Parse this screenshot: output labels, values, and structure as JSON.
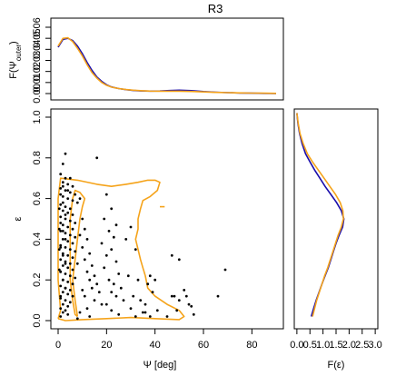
{
  "chart_data": [
    {
      "panel": "top",
      "type": "line",
      "title": "R3",
      "ylabel": "F(Ψ_outer)",
      "ylim": [
        0,
        0.06
      ],
      "yticks": [
        "0.00",
        "0.01",
        "0.02",
        "0.03",
        "0.04",
        "0.05",
        "0.06"
      ],
      "xlim": [
        -3,
        93
      ],
      "series": [
        {
          "color": "#1a0dab",
          "x": [
            0,
            2,
            4,
            6,
            8,
            10,
            12,
            14,
            16,
            18,
            20,
            22,
            25,
            28,
            31,
            34,
            38,
            42,
            46,
            50,
            55,
            60,
            65,
            70,
            75,
            80,
            85,
            90
          ],
          "y": [
            0.042,
            0.049,
            0.05,
            0.048,
            0.043,
            0.036,
            0.028,
            0.021,
            0.015,
            0.011,
            0.008,
            0.006,
            0.0045,
            0.0035,
            0.0028,
            0.0024,
            0.0022,
            0.0023,
            0.0027,
            0.003,
            0.0026,
            0.0018,
            0.0012,
            0.0008,
            0.0005,
            0.0003,
            0.0002,
            0.0001
          ]
        },
        {
          "color": "#f5a31a",
          "x": [
            0,
            2,
            4,
            6,
            8,
            10,
            12,
            14,
            16,
            18,
            20,
            22,
            25,
            28,
            31,
            34,
            38,
            42,
            46,
            50,
            55,
            60,
            65,
            70,
            75,
            80,
            85,
            90
          ],
          "y": [
            0.043,
            0.05,
            0.0505,
            0.047,
            0.041,
            0.034,
            0.026,
            0.019,
            0.014,
            0.01,
            0.0075,
            0.0058,
            0.0045,
            0.0036,
            0.003,
            0.0026,
            0.0022,
            0.0021,
            0.0021,
            0.0021,
            0.0019,
            0.0015,
            0.0011,
            0.0008,
            0.0006,
            0.0004,
            0.0003,
            0.0002
          ]
        }
      ]
    },
    {
      "panel": "main",
      "type": "scatter",
      "xlabel": "Ψ [deg]",
      "ylabel": "ε",
      "xlim": [
        -3,
        93
      ],
      "ylim": [
        -0.03,
        1.03
      ],
      "xticks": [
        "0",
        "20",
        "40",
        "60",
        "80"
      ],
      "yticks": [
        "0.0",
        "0.2",
        "0.4",
        "0.6",
        "0.8",
        "1.0"
      ],
      "points": [
        [
          3,
          0.82
        ],
        [
          2,
          0.77
        ],
        [
          16,
          0.8
        ],
        [
          1,
          0.72
        ],
        [
          3,
          0.7
        ],
        [
          5,
          0.7
        ],
        [
          2,
          0.68
        ],
        [
          4,
          0.67
        ],
        [
          6,
          0.66
        ],
        [
          1,
          0.65
        ],
        [
          3,
          0.64
        ],
        [
          5,
          0.63
        ],
        [
          7,
          0.62
        ],
        [
          2,
          0.61
        ],
        [
          4,
          0.6
        ],
        [
          6,
          0.59
        ],
        [
          8,
          0.58
        ],
        [
          1,
          0.57
        ],
        [
          3,
          0.56
        ],
        [
          5,
          0.55
        ],
        [
          2,
          0.54
        ],
        [
          4,
          0.53
        ],
        [
          6,
          0.52
        ],
        [
          1,
          0.51
        ],
        [
          3,
          0.5
        ],
        [
          5,
          0.49
        ],
        [
          7,
          0.48
        ],
        [
          2,
          0.47
        ],
        [
          4,
          0.46
        ],
        [
          6,
          0.45
        ],
        [
          1,
          0.44
        ],
        [
          3,
          0.43
        ],
        [
          5,
          0.42
        ],
        [
          7,
          0.41
        ],
        [
          2,
          0.4
        ],
        [
          4,
          0.39
        ],
        [
          6,
          0.38
        ],
        [
          1,
          0.37
        ],
        [
          3,
          0.36
        ],
        [
          5,
          0.35
        ],
        [
          7,
          0.34
        ],
        [
          2,
          0.33
        ],
        [
          4,
          0.32
        ],
        [
          6,
          0.31
        ],
        [
          1,
          0.3
        ],
        [
          3,
          0.29
        ],
        [
          5,
          0.28
        ],
        [
          2,
          0.27
        ],
        [
          4,
          0.26
        ],
        [
          6,
          0.25
        ],
        [
          1,
          0.24
        ],
        [
          3,
          0.23
        ],
        [
          5,
          0.22
        ],
        [
          7,
          0.21
        ],
        [
          2,
          0.2
        ],
        [
          4,
          0.19
        ],
        [
          6,
          0.18
        ],
        [
          1,
          0.17
        ],
        [
          3,
          0.16
        ],
        [
          5,
          0.15
        ],
        [
          2,
          0.14
        ],
        [
          4,
          0.13
        ],
        [
          6,
          0.12
        ],
        [
          1,
          0.11
        ],
        [
          3,
          0.1
        ],
        [
          5,
          0.09
        ],
        [
          2,
          0.08
        ],
        [
          4,
          0.07
        ],
        [
          1,
          0.06
        ],
        [
          3,
          0.05
        ],
        [
          2,
          0.04
        ],
        [
          4,
          0.03
        ],
        [
          1,
          0.02
        ],
        [
          1,
          0.62
        ],
        [
          2,
          0.58
        ],
        [
          3,
          0.52
        ],
        [
          1,
          0.48
        ],
        [
          2,
          0.44
        ],
        [
          3,
          0.4
        ],
        [
          1,
          0.36
        ],
        [
          2,
          0.32
        ],
        [
          3,
          0.28
        ],
        [
          1,
          0.24
        ],
        [
          2,
          0.2
        ],
        [
          3,
          0.16
        ],
        [
          1,
          0.12
        ],
        [
          2,
          0.66
        ],
        [
          4,
          0.64
        ],
        [
          0.5,
          0.55
        ],
        [
          0.5,
          0.45
        ],
        [
          0.5,
          0.35
        ],
        [
          0.5,
          0.25
        ],
        [
          9,
          0.6
        ],
        [
          10,
          0.5
        ],
        [
          11,
          0.45
        ],
        [
          12,
          0.4
        ],
        [
          10,
          0.36
        ],
        [
          13,
          0.33
        ],
        [
          11,
          0.3
        ],
        [
          14,
          0.27
        ],
        [
          12,
          0.24
        ],
        [
          15,
          0.22
        ],
        [
          13,
          0.2
        ],
        [
          16,
          0.18
        ],
        [
          14,
          0.16
        ],
        [
          17,
          0.14
        ],
        [
          11,
          0.12
        ],
        [
          15,
          0.1
        ],
        [
          18,
          0.08
        ],
        [
          12,
          0.06
        ],
        [
          9,
          0.04
        ],
        [
          13,
          0.02
        ],
        [
          8,
          0.01
        ],
        [
          10,
          0.15
        ],
        [
          8,
          0.28
        ],
        [
          9,
          0.42
        ],
        [
          20,
          0.62
        ],
        [
          22,
          0.55
        ],
        [
          19,
          0.5
        ],
        [
          24,
          0.47
        ],
        [
          21,
          0.44
        ],
        [
          23,
          0.41
        ],
        [
          18,
          0.38
        ],
        [
          22,
          0.35
        ],
        [
          20,
          0.32
        ],
        [
          24,
          0.29
        ],
        [
          19,
          0.26
        ],
        [
          25,
          0.23
        ],
        [
          21,
          0.2
        ],
        [
          23,
          0.18
        ],
        [
          26,
          0.16
        ],
        [
          22,
          0.14
        ],
        [
          24,
          0.12
        ],
        [
          27,
          0.1
        ],
        [
          20,
          0.08
        ],
        [
          22,
          0.05
        ],
        [
          25,
          0.03
        ],
        [
          30,
          0.46
        ],
        [
          28,
          0.4
        ],
        [
          32,
          0.35
        ],
        [
          29,
          0.22
        ],
        [
          33,
          0.2
        ],
        [
          31,
          0.12
        ],
        [
          34,
          0.1
        ],
        [
          30,
          0.06
        ],
        [
          36,
          0.04
        ],
        [
          32,
          0.02
        ],
        [
          38,
          0.22
        ],
        [
          40,
          0.2
        ],
        [
          37,
          0.18
        ],
        [
          39,
          0.14
        ],
        [
          36,
          0.08
        ],
        [
          41,
          0.05
        ],
        [
          38,
          0.02
        ],
        [
          35,
          0.04
        ],
        [
          47,
          0.32
        ],
        [
          50,
          0.3
        ],
        [
          48,
          0.12
        ],
        [
          52,
          0.15
        ],
        [
          50,
          0.1
        ],
        [
          55,
          0.07
        ],
        [
          53,
          0.12
        ],
        [
          56,
          0.03
        ],
        [
          49,
          0.05
        ],
        [
          45,
          0.02
        ],
        [
          47,
          0.12
        ],
        [
          54,
          0.08
        ],
        [
          66,
          0.12
        ],
        [
          69,
          0.25
        ]
      ],
      "contour": {
        "color": "#f5a31a",
        "outer": [
          [
            0,
            0.01
          ],
          [
            1,
            0.05
          ],
          [
            0,
            0.2
          ],
          [
            0,
            0.4
          ],
          [
            0,
            0.6
          ],
          [
            1,
            0.7
          ],
          [
            8,
            0.69
          ],
          [
            16,
            0.67
          ],
          [
            22,
            0.66
          ],
          [
            28,
            0.67
          ],
          [
            33,
            0.68
          ],
          [
            37,
            0.69
          ],
          [
            40,
            0.69
          ],
          [
            42,
            0.68
          ],
          [
            41,
            0.64
          ],
          [
            38,
            0.61
          ],
          [
            35,
            0.59
          ],
          [
            34,
            0.55
          ],
          [
            33,
            0.5
          ],
          [
            33,
            0.45
          ],
          [
            32,
            0.4
          ],
          [
            33,
            0.35
          ],
          [
            34,
            0.3
          ],
          [
            35,
            0.26
          ],
          [
            36,
            0.22
          ],
          [
            37,
            0.16
          ],
          [
            40,
            0.12
          ],
          [
            45,
            0.08
          ],
          [
            50,
            0.05
          ],
          [
            52,
            0.02
          ],
          [
            50,
            0.005
          ],
          [
            40,
            0.01
          ],
          [
            30,
            0.015
          ],
          [
            20,
            0.01
          ],
          [
            10,
            0.005
          ],
          [
            3,
            0.0
          ],
          [
            0,
            0.01
          ]
        ],
        "inner": [
          [
            8,
            0.02
          ],
          [
            7,
            0.1
          ],
          [
            6,
            0.2
          ],
          [
            7,
            0.3
          ],
          [
            8,
            0.4
          ],
          [
            9,
            0.5
          ],
          [
            10,
            0.56
          ],
          [
            11,
            0.6
          ],
          [
            9,
            0.63
          ],
          [
            7,
            0.64
          ],
          [
            6,
            0.6
          ],
          [
            5,
            0.5
          ],
          [
            5,
            0.4
          ],
          [
            5,
            0.3
          ],
          [
            5,
            0.2
          ],
          [
            6,
            0.1
          ],
          [
            7,
            0.03
          ],
          [
            8,
            0.02
          ]
        ],
        "stub": [
          [
            42,
            0.56
          ],
          [
            44,
            0.56
          ]
        ]
      }
    },
    {
      "panel": "right",
      "type": "line",
      "xlabel": "F(ε)",
      "xlim": [
        -0.1,
        3.1
      ],
      "xticks": [
        "0.0",
        "0.5",
        "1.0",
        "1.5",
        "2.0",
        "2.5",
        "3.0"
      ],
      "ylim": [
        -0.03,
        1.03
      ],
      "series": [
        {
          "color": "#1a0dab",
          "y": [
            1.02,
            0.97,
            0.92,
            0.87,
            0.82,
            0.78,
            0.74,
            0.7,
            0.66,
            0.62,
            0.58,
            0.54,
            0.5,
            0.46,
            0.42,
            0.38,
            0.34,
            0.3,
            0.26,
            0.22,
            0.18,
            0.14,
            0.1,
            0.06,
            0.02
          ],
          "x": [
            0.0,
            0.04,
            0.1,
            0.2,
            0.33,
            0.5,
            0.68,
            0.88,
            1.08,
            1.3,
            1.52,
            1.7,
            1.8,
            1.75,
            1.62,
            1.5,
            1.4,
            1.3,
            1.2,
            1.08,
            0.96,
            0.85,
            0.74,
            0.64,
            0.55
          ]
        },
        {
          "color": "#f5a31a",
          "y": [
            1.02,
            0.97,
            0.92,
            0.87,
            0.82,
            0.78,
            0.74,
            0.7,
            0.66,
            0.62,
            0.58,
            0.54,
            0.5,
            0.46,
            0.42,
            0.38,
            0.34,
            0.3,
            0.26,
            0.22,
            0.18,
            0.14,
            0.1,
            0.06,
            0.02
          ],
          "x": [
            0.0,
            0.05,
            0.12,
            0.24,
            0.4,
            0.6,
            0.82,
            1.04,
            1.26,
            1.48,
            1.66,
            1.76,
            1.78,
            1.7,
            1.58,
            1.48,
            1.38,
            1.28,
            1.18,
            1.06,
            0.96,
            0.86,
            0.76,
            0.68,
            0.6
          ]
        }
      ]
    }
  ]
}
